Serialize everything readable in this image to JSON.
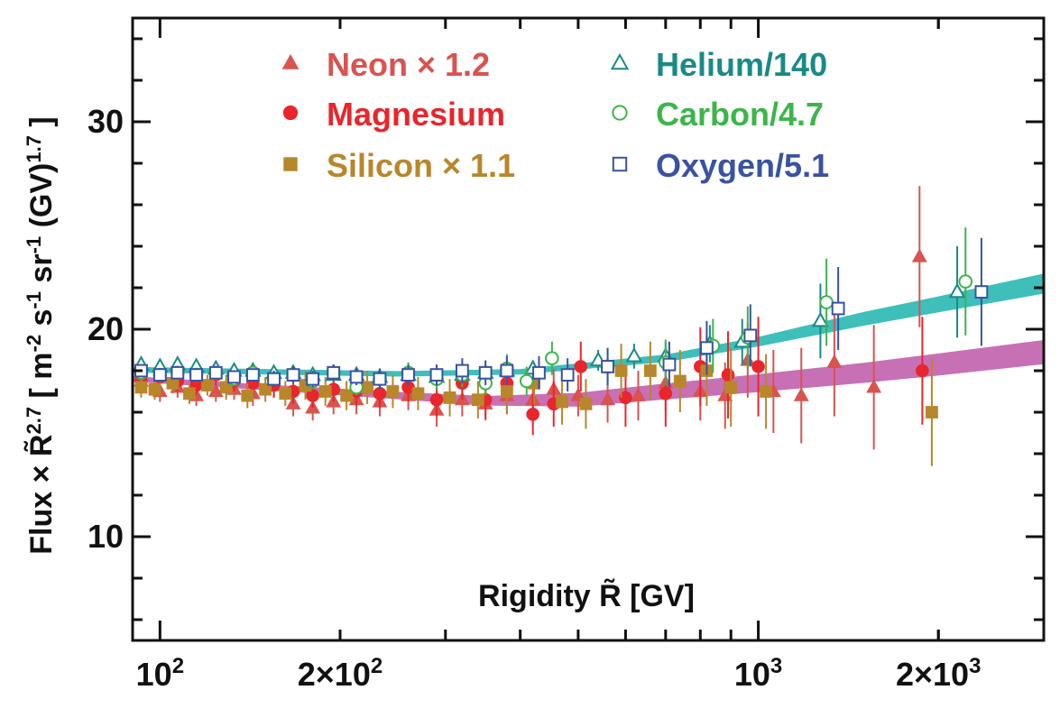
{
  "chart_data": {
    "type": "scatter",
    "xlabel": "Rigidity R̃ [GV]",
    "ylabel": "Flux × R̃^2.7 [ m^-2 s^-1 sr^-1 (GV)^1.7 ]",
    "xscale": "log",
    "xlim": [
      90,
      3000
    ],
    "ylim": [
      5,
      35
    ],
    "yticks": [
      10,
      20,
      30
    ],
    "xtick_labels": [
      {
        "value": 100,
        "label": "10",
        "sup": "2"
      },
      {
        "value": 200,
        "label": "2×10",
        "sup": "2"
      },
      {
        "value": 1000,
        "label": "10",
        "sup": "3"
      },
      {
        "value": 2000,
        "label": "2×10",
        "sup": "3"
      }
    ],
    "legend_placement": "top",
    "series": [
      {
        "name": "Neon × 1.2",
        "marker": "triangle",
        "filled": true,
        "color": "#d9534f",
        "x": [
          93,
          100,
          107,
          115,
          124,
          133,
          143,
          155,
          167,
          180,
          195,
          213,
          233,
          260,
          290,
          320,
          350,
          380,
          420,
          455,
          500,
          560,
          630,
          700,
          800,
          880,
          960,
          1060,
          1180,
          1340,
          1560,
          1860
        ],
        "y": [
          17.5,
          17.0,
          17.2,
          16.8,
          17.0,
          17.1,
          16.9,
          17.3,
          16.4,
          16.2,
          16.5,
          16.6,
          16.5,
          16.8,
          16.1,
          16.6,
          16.4,
          16.8,
          16.6,
          17.1,
          16.8,
          16.6,
          16.8,
          17.4,
          17.0,
          16.8,
          18.5,
          17.0,
          16.8,
          18.4,
          17.2,
          23.5
        ],
        "err": [
          0.5,
          0.5,
          0.5,
          0.5,
          0.5,
          0.5,
          0.6,
          0.6,
          0.6,
          0.6,
          0.6,
          0.7,
          0.7,
          0.7,
          0.8,
          0.8,
          0.8,
          0.9,
          0.9,
          1.0,
          1.0,
          1.1,
          1.2,
          1.3,
          1.4,
          1.6,
          1.8,
          2.0,
          2.3,
          2.6,
          3.0,
          3.4
        ]
      },
      {
        "name": "Magnesium",
        "marker": "circle",
        "filled": true,
        "color": "#e8262b",
        "x": [
          93,
          100,
          107,
          115,
          124,
          133,
          143,
          155,
          167,
          180,
          195,
          213,
          233,
          260,
          290,
          320,
          350,
          380,
          420,
          455,
          505,
          600,
          700,
          800,
          890,
          1000,
          1880
        ],
        "y": [
          17.5,
          17.7,
          17.5,
          17.3,
          17.8,
          17.5,
          17.4,
          17.3,
          17.0,
          16.8,
          17.1,
          17.0,
          16.9,
          17.2,
          16.6,
          17.4,
          16.6,
          17.4,
          15.9,
          16.4,
          18.2,
          16.7,
          16.9,
          18.2,
          17.8,
          18.2,
          18.0
        ],
        "err": [
          0.5,
          0.5,
          0.5,
          0.5,
          0.5,
          0.5,
          0.6,
          0.6,
          0.6,
          0.6,
          0.6,
          0.7,
          0.7,
          0.7,
          0.8,
          0.8,
          0.9,
          0.9,
          1.0,
          1.1,
          1.2,
          1.4,
          1.6,
          1.9,
          2.1,
          2.4,
          2.6
        ]
      },
      {
        "name": "Silicon × 1.1",
        "marker": "square",
        "filled": true,
        "color": "#b8862b",
        "x": [
          93,
          98,
          105,
          112,
          120,
          129,
          140,
          150,
          162,
          175,
          189,
          205,
          222,
          245,
          270,
          305,
          340,
          380,
          422,
          470,
          515,
          590,
          660,
          740,
          820,
          900,
          1030,
          1950
        ],
        "y": [
          17.2,
          17.1,
          17.4,
          16.9,
          17.3,
          17.2,
          16.8,
          17.1,
          16.9,
          17.3,
          17.0,
          16.8,
          17.2,
          17.0,
          16.9,
          16.7,
          16.6,
          17.0,
          17.4,
          16.5,
          16.4,
          18.0,
          18.0,
          17.5,
          18.0,
          17.2,
          17.0,
          16.0
        ],
        "err": [
          0.5,
          0.5,
          0.5,
          0.5,
          0.5,
          0.6,
          0.6,
          0.6,
          0.6,
          0.7,
          0.7,
          0.7,
          0.8,
          0.8,
          0.8,
          0.9,
          0.9,
          1.0,
          1.0,
          1.1,
          1.2,
          1.3,
          1.4,
          1.5,
          1.7,
          1.9,
          1.8,
          2.6
        ]
      },
      {
        "name": "Helium/140",
        "marker": "triangle",
        "filled": false,
        "color": "#1a8a86",
        "x": [
          93,
          100,
          107,
          115,
          124,
          133,
          143,
          155,
          167,
          180,
          195,
          213,
          233,
          260,
          290,
          320,
          350,
          380,
          420,
          540,
          620,
          700,
          830,
          940,
          1270,
          2150
        ],
        "y": [
          18.3,
          18.2,
          18.3,
          18.2,
          18.1,
          18.0,
          18.0,
          17.9,
          17.9,
          17.8,
          17.8,
          17.8,
          17.7,
          17.8,
          17.7,
          17.8,
          17.9,
          18.0,
          18.1,
          18.5,
          18.7,
          18.7,
          19.3,
          19.4,
          20.4,
          21.8
        ],
        "err": [
          0.2,
          0.2,
          0.2,
          0.2,
          0.2,
          0.2,
          0.2,
          0.2,
          0.2,
          0.2,
          0.2,
          0.2,
          0.2,
          0.3,
          0.3,
          0.3,
          0.3,
          0.4,
          0.4,
          0.5,
          0.6,
          0.7,
          0.9,
          1.1,
          1.8,
          2.2
        ]
      },
      {
        "name": "Carbon/4.7",
        "marker": "circle",
        "filled": false,
        "color": "#3cb54a",
        "x": [
          93,
          100,
          107,
          115,
          124,
          133,
          143,
          155,
          167,
          180,
          195,
          213,
          233,
          260,
          290,
          320,
          350,
          380,
          410,
          452,
          560,
          700,
          840,
          960,
          1300,
          2220
        ],
        "y": [
          17.9,
          17.8,
          17.9,
          17.8,
          17.9,
          17.6,
          17.9,
          17.6,
          17.8,
          17.5,
          17.9,
          17.2,
          17.6,
          17.9,
          17.6,
          17.8,
          17.4,
          18.1,
          17.5,
          18.6,
          18.2,
          18.4,
          19.2,
          19.6,
          21.3,
          22.3
        ],
        "err": [
          0.3,
          0.3,
          0.3,
          0.3,
          0.3,
          0.3,
          0.3,
          0.4,
          0.4,
          0.4,
          0.4,
          0.4,
          0.5,
          0.5,
          0.5,
          0.6,
          0.6,
          0.7,
          0.7,
          0.8,
          0.9,
          1.1,
          1.3,
          1.5,
          2.1,
          2.6
        ]
      },
      {
        "name": "Oxygen/5.1",
        "marker": "square",
        "filled": false,
        "color": "#3a52a4",
        "x": [
          93,
          100,
          107,
          115,
          124,
          133,
          143,
          155,
          167,
          180,
          195,
          213,
          233,
          260,
          290,
          320,
          350,
          380,
          430,
          480,
          560,
          710,
          820,
          970,
          1360,
          2360
        ],
        "y": [
          18.0,
          17.8,
          17.9,
          17.8,
          17.9,
          17.7,
          17.8,
          17.6,
          17.8,
          17.6,
          17.9,
          17.7,
          17.6,
          17.8,
          17.8,
          18.0,
          17.9,
          18.0,
          17.9,
          17.8,
          18.2,
          18.3,
          19.1,
          19.7,
          21.0,
          21.8
        ],
        "err": [
          0.3,
          0.3,
          0.3,
          0.3,
          0.3,
          0.3,
          0.3,
          0.4,
          0.4,
          0.4,
          0.4,
          0.4,
          0.5,
          0.5,
          0.5,
          0.6,
          0.6,
          0.7,
          0.8,
          0.8,
          0.9,
          1.1,
          1.3,
          1.5,
          2.0,
          2.6
        ]
      }
    ],
    "bands": [
      {
        "color": "#3fbfb9",
        "x": [
          90,
          150,
          250,
          400,
          700,
          1000,
          1500,
          2000,
          3000
        ],
        "y": [
          18.05,
          17.95,
          17.85,
          17.95,
          18.6,
          19.4,
          20.5,
          21.2,
          22.2
        ],
        "halfwidth": [
          0.1,
          0.1,
          0.1,
          0.1,
          0.15,
          0.2,
          0.3,
          0.35,
          0.45
        ]
      },
      {
        "color": "#c770b5",
        "x": [
          90,
          150,
          250,
          350,
          500,
          700,
          1000,
          1500,
          2000,
          3000
        ],
        "y": [
          17.6,
          17.2,
          16.8,
          16.55,
          16.6,
          17.0,
          17.4,
          17.9,
          18.3,
          18.9
        ],
        "halfwidth": [
          0.1,
          0.1,
          0.15,
          0.2,
          0.3,
          0.35,
          0.4,
          0.45,
          0.5,
          0.55
        ]
      }
    ]
  }
}
